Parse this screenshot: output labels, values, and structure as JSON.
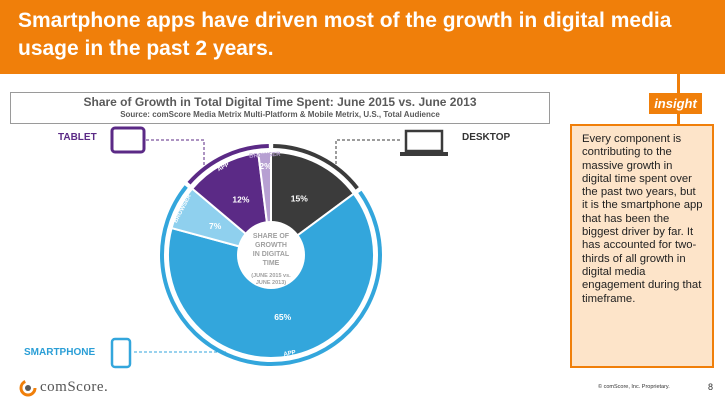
{
  "banner": {
    "title": "Smartphone apps have driven most of the growth in digital media usage in the past 2 years."
  },
  "chart_data": {
    "type": "pie",
    "title": "Share of Growth in Total Digital Time Spent: June 2015 vs. June 2013",
    "subtitle": "Source: comScore Media Metrix Multi-Platform & Mobile Metrix, U.S., Total Audience",
    "center_label": [
      "SHARE OF",
      "GROWTH",
      "IN DIGITAL",
      "TIME"
    ],
    "center_sublabel": [
      "(JUNE 2015 vs.",
      "JUNE 2013)"
    ],
    "slices": [
      {
        "device": "DESKTOP",
        "segment": "",
        "value": 15,
        "label": "15%",
        "color": "#3b3b3b"
      },
      {
        "device": "SMARTPHONE",
        "segment": "APP",
        "value": 65,
        "label": "65%",
        "color": "#33a6dc"
      },
      {
        "device": "SMARTPHONE",
        "segment": "BROWSER",
        "value": 7,
        "label": "7%",
        "color": "#8fd0ee"
      },
      {
        "device": "TABLET",
        "segment": "APP",
        "value": 12,
        "label": "12%",
        "color": "#5b2a86"
      },
      {
        "device": "TABLET",
        "segment": "BROWSER",
        "value": 2,
        "label": "2%",
        "color": "#b7a0d2"
      }
    ],
    "devices": [
      {
        "name": "DESKTOP",
        "color": "#3b3b3b"
      },
      {
        "name": "SMARTPHONE",
        "color": "#33a6dc"
      },
      {
        "name": "TABLET",
        "color": "#5b2a86"
      }
    ]
  },
  "labels": {
    "tablet": "TABLET",
    "desktop": "DESKTOP",
    "smartphone": "SMARTPHONE"
  },
  "insight": {
    "tag": "insight",
    "text": "Every component is contributing to the massive growth in digital time spent over the past two years, but it is the smartphone app that has been the biggest driver by far. It has accounted for two-thirds of all growth in digital media engagement during that timeframe."
  },
  "footer": {
    "logo_text": "comScore.",
    "copyright": "© comScore, Inc. Proprietary.",
    "page": "8"
  },
  "colors": {
    "accent": "#f07f0a",
    "insight_bg": "#fde4c9"
  }
}
